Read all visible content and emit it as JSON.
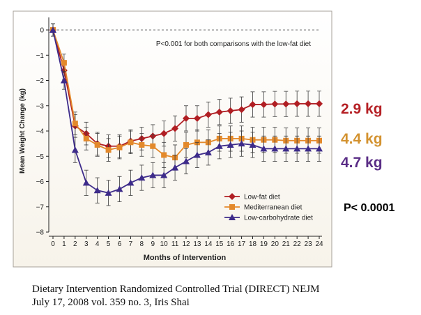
{
  "chart_data": {
    "type": "line",
    "title": "",
    "annotation": "P<0.001 for both comparisons with the low-fat diet",
    "xlabel": "Months of Intervention",
    "ylabel": "Mean Weight Change (kg)",
    "xlim": [
      0,
      24
    ],
    "ylim": [
      -8,
      0
    ],
    "x_ticks": [
      0,
      1,
      2,
      3,
      4,
      5,
      6,
      7,
      8,
      9,
      10,
      11,
      12,
      13,
      14,
      15,
      16,
      17,
      18,
      19,
      20,
      21,
      22,
      23,
      24
    ],
    "y_ticks": [
      0,
      -1,
      -2,
      -3,
      -4,
      -5,
      -6,
      -7,
      -8
    ],
    "y_tick_labels": [
      "0",
      "−1",
      "−2",
      "−3",
      "−4",
      "−5",
      "−6",
      "−7",
      "−8"
    ],
    "x": [
      0,
      1,
      2,
      3,
      4,
      5,
      6,
      7,
      8,
      9,
      10,
      11,
      12,
      13,
      14,
      15,
      16,
      17,
      18,
      19,
      20,
      21,
      22,
      23,
      24
    ],
    "series": [
      {
        "name": "Low-fat diet",
        "color": "#b01e23",
        "marker": "diamond",
        "values": [
          0,
          -1.6,
          -3.8,
          -4.1,
          -4.5,
          -4.6,
          -4.6,
          -4.4,
          -4.3,
          -4.2,
          -4.1,
          -3.9,
          -3.5,
          -3.5,
          -3.35,
          -3.25,
          -3.2,
          -3.15,
          -2.95,
          -2.95,
          -2.93,
          -2.93,
          -2.92,
          -2.92,
          -2.92
        ],
        "error": [
          0.25,
          0.35,
          0.45,
          0.45,
          0.45,
          0.45,
          0.45,
          0.45,
          0.45,
          0.45,
          0.5,
          0.5,
          0.5,
          0.5,
          0.5,
          0.5,
          0.5,
          0.5,
          0.5,
          0.5,
          0.5,
          0.5,
          0.5,
          0.5,
          0.5
        ]
      },
      {
        "name": "Mediterranean diet",
        "color": "#e3892b",
        "marker": "square",
        "values": [
          0,
          -1.3,
          -3.7,
          -4.3,
          -4.55,
          -4.75,
          -4.65,
          -4.45,
          -4.55,
          -4.6,
          -4.95,
          -5.05,
          -4.55,
          -4.45,
          -4.45,
          -4.3,
          -4.3,
          -4.3,
          -4.35,
          -4.35,
          -4.35,
          -4.38,
          -4.38,
          -4.38,
          -4.38
        ],
        "error": [
          0.25,
          0.35,
          0.45,
          0.45,
          0.45,
          0.45,
          0.45,
          0.45,
          0.45,
          0.45,
          0.5,
          0.5,
          0.5,
          0.5,
          0.5,
          0.5,
          0.5,
          0.5,
          0.5,
          0.5,
          0.5,
          0.5,
          0.5,
          0.5,
          0.5
        ]
      },
      {
        "name": "Low-carbohydrate diet",
        "color": "#3d2b8a",
        "marker": "triangle",
        "values": [
          0,
          -2.0,
          -4.75,
          -6.05,
          -6.35,
          -6.45,
          -6.3,
          -6.05,
          -5.85,
          -5.75,
          -5.75,
          -5.45,
          -5.2,
          -4.95,
          -4.85,
          -4.6,
          -4.55,
          -4.5,
          -4.55,
          -4.7,
          -4.7,
          -4.7,
          -4.7,
          -4.7,
          -4.7
        ],
        "error": [
          0.25,
          0.35,
          0.5,
          0.5,
          0.5,
          0.5,
          0.5,
          0.5,
          0.5,
          0.5,
          0.5,
          0.5,
          0.5,
          0.5,
          0.5,
          0.5,
          0.5,
          0.5,
          0.5,
          0.5,
          0.5,
          0.5,
          0.5,
          0.5,
          0.5
        ]
      }
    ],
    "legend_position": "bottom-right"
  },
  "side_labels": {
    "low_fat": {
      "text": "2.9 kg",
      "color": "#b52025"
    },
    "mediterranean": {
      "text": "4.4 kg",
      "color": "#d3922f"
    },
    "low_carb": {
      "text": "4.7 kg",
      "color": "#5a2d86"
    },
    "p_value": "P< 0.0001"
  },
  "caption": {
    "line1": "Dietary Intervention Randomized Controlled Trial (DIRECT) NEJM",
    "line2": "July 17, 2008 vol. 359 no. 3, Iris Shai"
  }
}
